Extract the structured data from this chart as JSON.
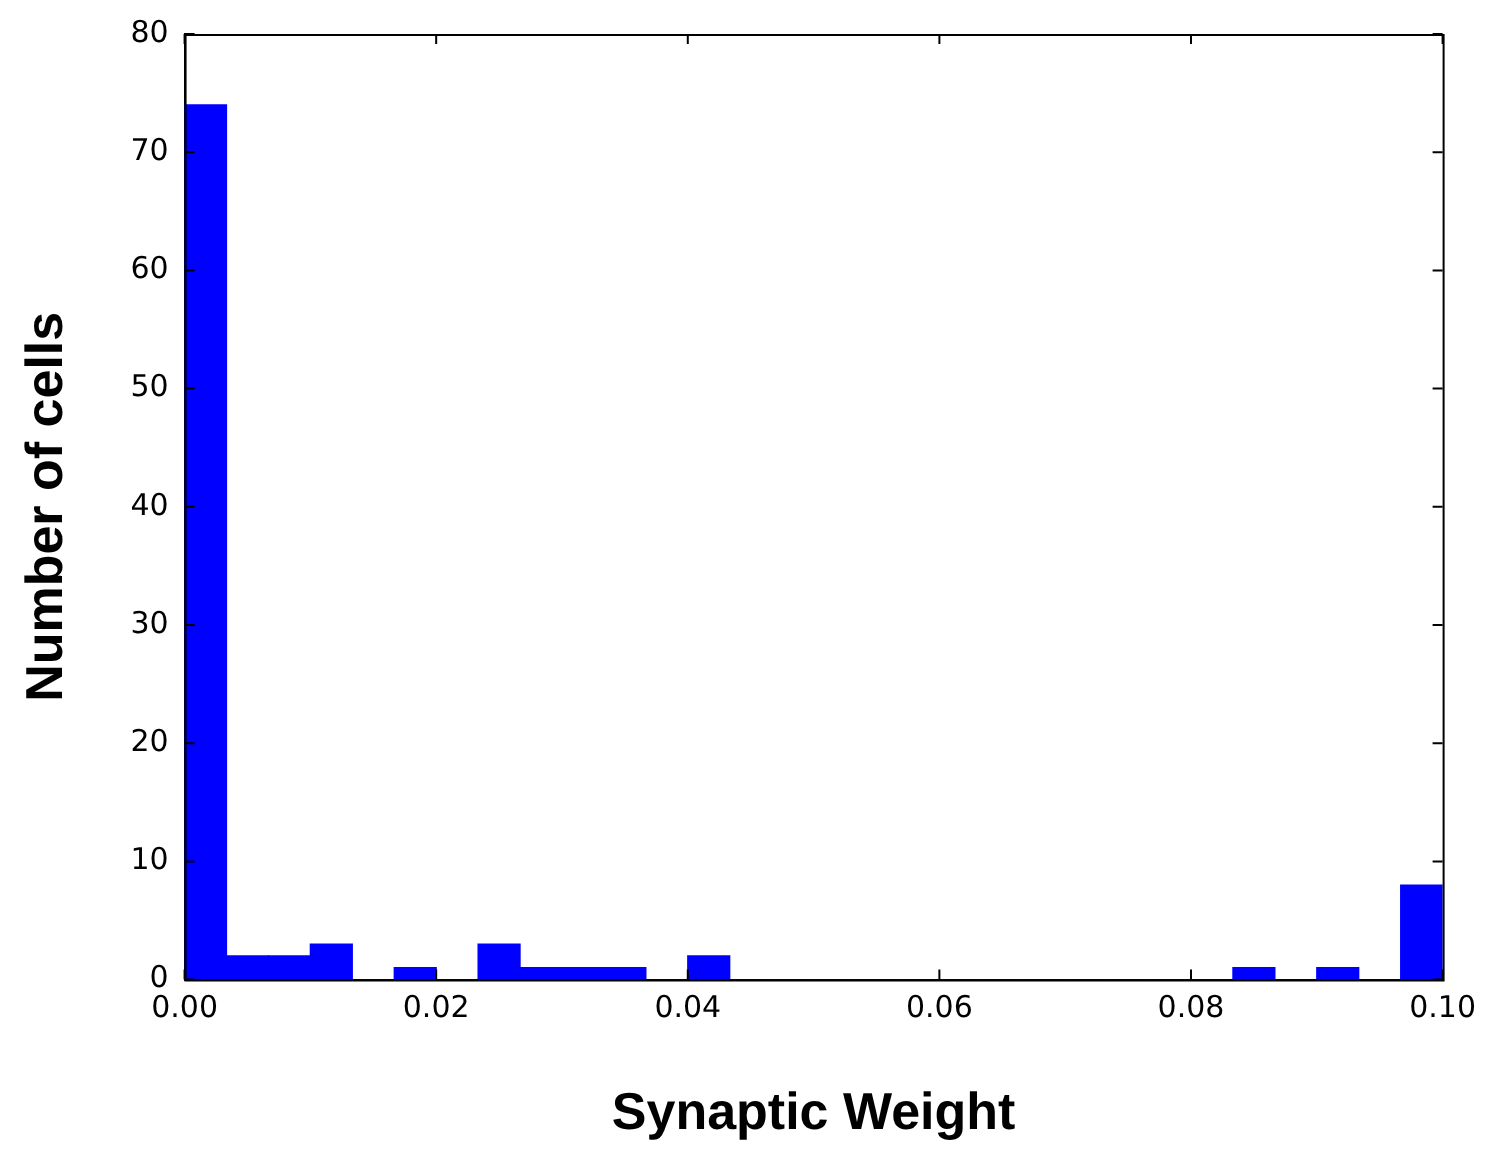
{
  "chart_data": {
    "type": "histogram",
    "xlabel": "Synaptic Weight",
    "ylabel": "Number of cells",
    "color": "#0000ff",
    "bins": [
      0,
      0.00333,
      0.00667,
      0.01,
      0.01333,
      0.01667,
      0.02,
      0.02333,
      0.02667,
      0.03,
      0.03333,
      0.03667,
      0.04,
      0.04333,
      0.04667,
      0.05,
      0.05333,
      0.05667,
      0.06,
      0.06333,
      0.06667,
      0.07,
      0.07333,
      0.07667,
      0.08,
      0.08333,
      0.08667,
      0.09,
      0.09333,
      0.09667,
      0.1
    ],
    "values": [
      74,
      2,
      2,
      3,
      0,
      1,
      0,
      3,
      1,
      1,
      1,
      0,
      2,
      0,
      0,
      0,
      0,
      0,
      0,
      0,
      0,
      0,
      0,
      0,
      0,
      1,
      0,
      1,
      0,
      8
    ],
    "xlim": [
      0,
      0.1
    ],
    "xticks": [
      {
        "value": 0,
        "label": "0.00"
      },
      {
        "value": 0.02,
        "label": "0.02"
      },
      {
        "value": 0.04,
        "label": "0.04"
      },
      {
        "value": 0.06,
        "label": "0.06"
      },
      {
        "value": 0.08,
        "label": "0.08"
      },
      {
        "value": 0.1,
        "label": "0.10"
      }
    ],
    "ylim": [
      0,
      80
    ],
    "yticks": [
      0,
      10,
      20,
      30,
      40,
      50,
      60,
      70,
      80
    ],
    "grid": false
  }
}
